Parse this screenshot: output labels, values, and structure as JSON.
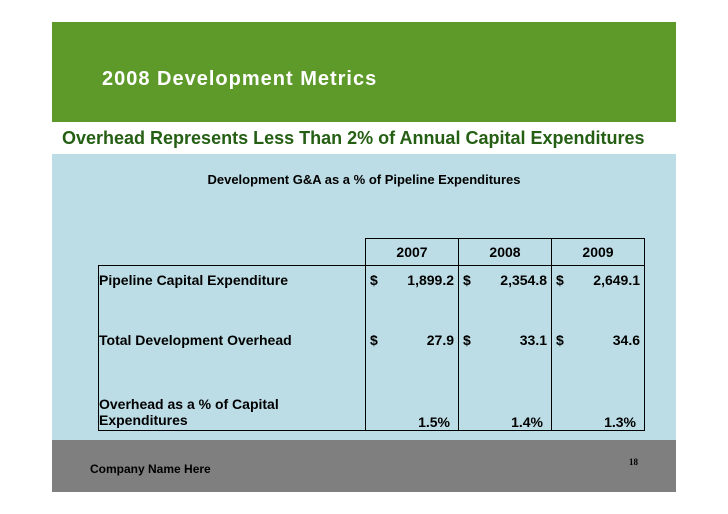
{
  "slide": {
    "title": "2008 Development Metrics",
    "subtitle": "Overhead Represents Less Than 2% of Annual Capital Expenditures",
    "table_caption": "Development G&A as a % of Pipeline Expenditures",
    "page_number": "18",
    "company": "Company Name Here"
  },
  "table": {
    "columns": [
      "2007",
      "2008",
      "2009"
    ],
    "rows": [
      {
        "label": "Pipeline Capital Expenditure",
        "cells": [
          {
            "sym": "$",
            "num": "1,899.2"
          },
          {
            "sym": "$",
            "num": "2,354.8"
          },
          {
            "sym": "$",
            "num": "2,649.1"
          }
        ]
      },
      {
        "label": "Total Development Overhead",
        "cells": [
          {
            "sym": "$",
            "num": "27.9"
          },
          {
            "sym": "$",
            "num": "33.1"
          },
          {
            "sym": "$",
            "num": "34.6"
          }
        ]
      },
      {
        "label_line1": "Overhead as a % of Capital",
        "label_line2": "Expenditures",
        "cells": [
          "1.5%",
          "1.4%",
          "1.3%"
        ]
      }
    ]
  },
  "colors": {
    "header_green": "#5e9a2a",
    "subtitle_green": "#245f14",
    "content_blue": "#bcdde5",
    "footer_gray": "#7f7f7f"
  }
}
